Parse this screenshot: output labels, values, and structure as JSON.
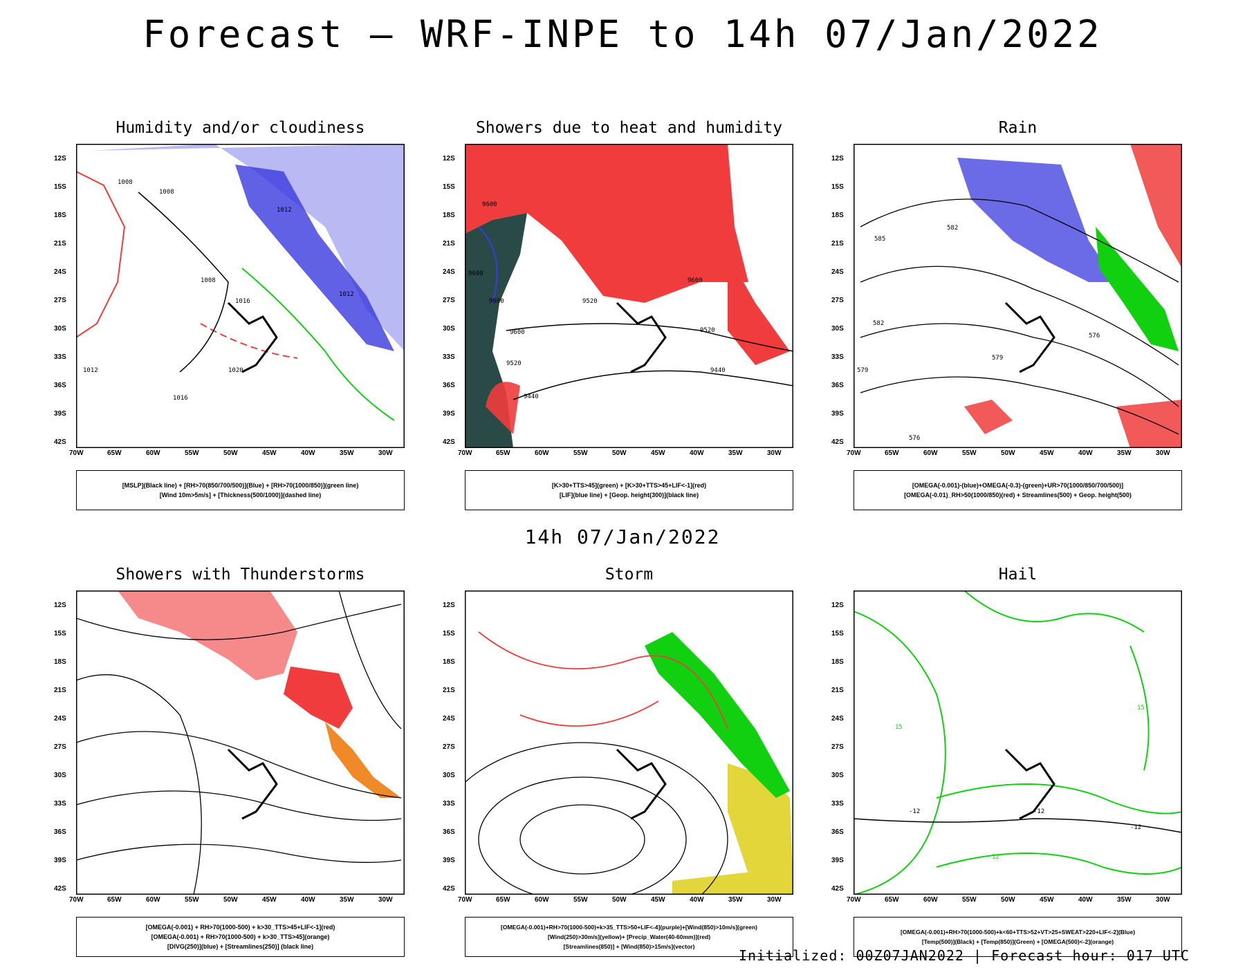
{
  "title": "Forecast — WRF-INPE to 14h 07/Jan/2022",
  "subtitle": "14h 07/Jan/2022",
  "footer": "Initialized: 00Z07JAN2022 | Forecast hour: 017 UTC",
  "axes": {
    "lat": [
      "12S",
      "15S",
      "18S",
      "21S",
      "24S",
      "27S",
      "30S",
      "33S",
      "36S",
      "39S",
      "42S"
    ],
    "lon": [
      "70W",
      "65W",
      "60W",
      "55W",
      "50W",
      "45W",
      "40W",
      "35W",
      "30W"
    ]
  },
  "colors": {
    "red": "#f03c3c",
    "green": "#10d010",
    "blue": "#3a3ae0",
    "lightblue": "#a8a8f0",
    "darkteal": "#2a4a48",
    "orange": "#f08a28",
    "yellow": "#e2d63a"
  },
  "panels": [
    {
      "title": "Humidity and/or cloudiness",
      "legend": [
        "[MSLP](Black line) + [RH>70(850/700/500)](Blue) + [RH>70(1000/850)](green line)",
        "[Wind 10m>5m/s] + [Thickness(500/1000)](dashed line)"
      ],
      "contour_labels": [
        "1008",
        "1008",
        "1012",
        "1016",
        "1020",
        "1012",
        "1008",
        "1016",
        "1012"
      ]
    },
    {
      "title": "Showers due to heat and humidity",
      "legend": [
        "[K>30+TTS>45](green) + [K>30+TTS>45+LIF<-1](red)",
        "[LIF](blue line) + [Geop. height(300)](black line)"
      ],
      "contour_labels": [
        "9600",
        "9600",
        "9600",
        "9600",
        "9520",
        "9520",
        "9520",
        "9440",
        "9440",
        "9600"
      ]
    },
    {
      "title": "Rain",
      "legend": [
        "[OMEGA(-0.001)-(blue)+OMEGA(-0.3)-(green)+UR>70(1000/850/700/500)]",
        "[OMEGA(-0.01)_RH>50(1000/850)(red) + Streamlines(500) + Geop. height(500)"
      ],
      "contour_labels": [
        "582",
        "585",
        "582",
        "579",
        "576",
        "579",
        "576"
      ]
    },
    {
      "title": "Showers with Thunderstorms",
      "legend": [
        "[OMEGA(-0.001) + RH>70(1000-500) + k>30_TTS>45+LIF<-1](red)",
        "[OMEGA(-0.001) + RH>70(1000-500) + k>30_TTS>45](orange)",
        "[DIVG(250)](blue) + [Streamlines(250)] (black line)"
      ],
      "contour_labels": []
    },
    {
      "title": "Storm",
      "legend": [
        "[OMEGA(-0.001)+RH>70(1000-500)+k>35_TTS>50+LIF<-4](purple)+[Wind(850)>10m/s](green)",
        "[Wind(250)>30m/s](yellow)+ [Precip_Water(40-60mm)](red)",
        "[Streamlines(850)] + [Wind(850)>15m/s](vector)"
      ],
      "contour_labels": []
    },
    {
      "title": "Hail",
      "legend": [
        "[OMEGA(-0.001)+RH>70(1000-500)+k<60+TTS>52+VT>25+SWEAT>220+LIF<-2](Blue)",
        "[Temp(500)](Black) + [Temp(850)](Green) + [OMEGA(500)<-2](orange)"
      ],
      "contour_labels": [
        "-12",
        "-12",
        "-12",
        "15",
        "12",
        "15"
      ]
    }
  ]
}
